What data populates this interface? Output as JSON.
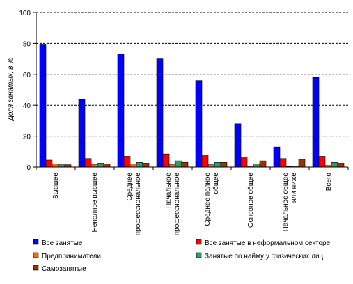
{
  "chart_data": {
    "type": "bar",
    "title": "",
    "xlabel": "",
    "ylabel": "Доля занятых, в %",
    "ylim": [
      0,
      100
    ],
    "yticks": [
      0,
      20,
      40,
      60,
      80,
      100
    ],
    "grid": true,
    "legend_position": "bottom",
    "categories": [
      [
        "Высшее"
      ],
      [
        "Неполное высшее"
      ],
      [
        "Среднее",
        "профессиональное"
      ],
      [
        "Начальное",
        "профессиональное"
      ],
      [
        "Среднее полное",
        "общее"
      ],
      [
        "Основное общее"
      ],
      [
        "Начальное общее",
        "или ниже"
      ],
      [
        "Всего"
      ]
    ],
    "series": [
      {
        "name": "Все занятые",
        "color": "#0000ff",
        "values": [
          79.5,
          44,
          73,
          70,
          56,
          28,
          13,
          58
        ]
      },
      {
        "name": "Все занятые в неформальном секторе",
        "color": "#ff0000",
        "values": [
          4.5,
          5.5,
          7,
          8.5,
          8,
          6.5,
          5.5,
          7
        ]
      },
      {
        "name": "Предприниматели",
        "color": "#ff6600",
        "values": [
          2,
          1.5,
          2,
          1.5,
          1.5,
          0.5,
          0.3,
          1
        ]
      },
      {
        "name": "Занятые по найму у физических лиц",
        "color": "#339966",
        "values": [
          1.5,
          2.5,
          3,
          4,
          3,
          2,
          0.5,
          3
        ]
      },
      {
        "name": "Самозанятые",
        "color": "#993300",
        "values": [
          1.5,
          2,
          2.5,
          3,
          3,
          4,
          5,
          2.5
        ]
      }
    ]
  }
}
